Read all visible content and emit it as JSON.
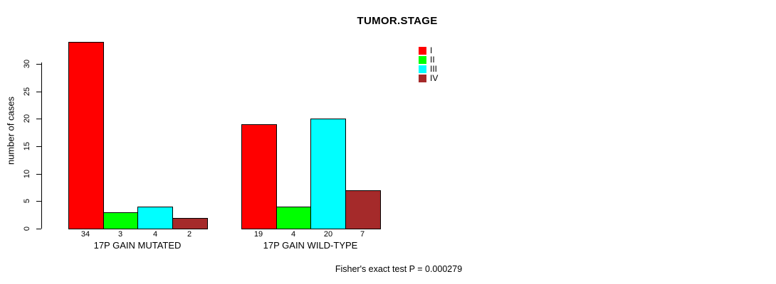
{
  "chart_data": {
    "type": "bar",
    "title": "TUMOR.STAGE",
    "ylabel": "number of cases",
    "ylim": [
      0,
      30
    ],
    "yticks": [
      0,
      5,
      10,
      15,
      20,
      25,
      30
    ],
    "grid": false,
    "legend_position": "top-right",
    "series": [
      {
        "name": "I",
        "color": "#FF0000"
      },
      {
        "name": "II",
        "color": "#00FF00"
      },
      {
        "name": "III",
        "color": "#00FFFF"
      },
      {
        "name": "IV",
        "color": "#A52A2A"
      }
    ],
    "groups": [
      {
        "label": "17P GAIN MUTATED",
        "values": [
          34,
          3,
          4,
          2
        ]
      },
      {
        "label": "17P GAIN WILD-TYPE",
        "values": [
          19,
          4,
          20,
          7
        ]
      }
    ],
    "footer": "Fisher's exact test P = 0.000279"
  }
}
